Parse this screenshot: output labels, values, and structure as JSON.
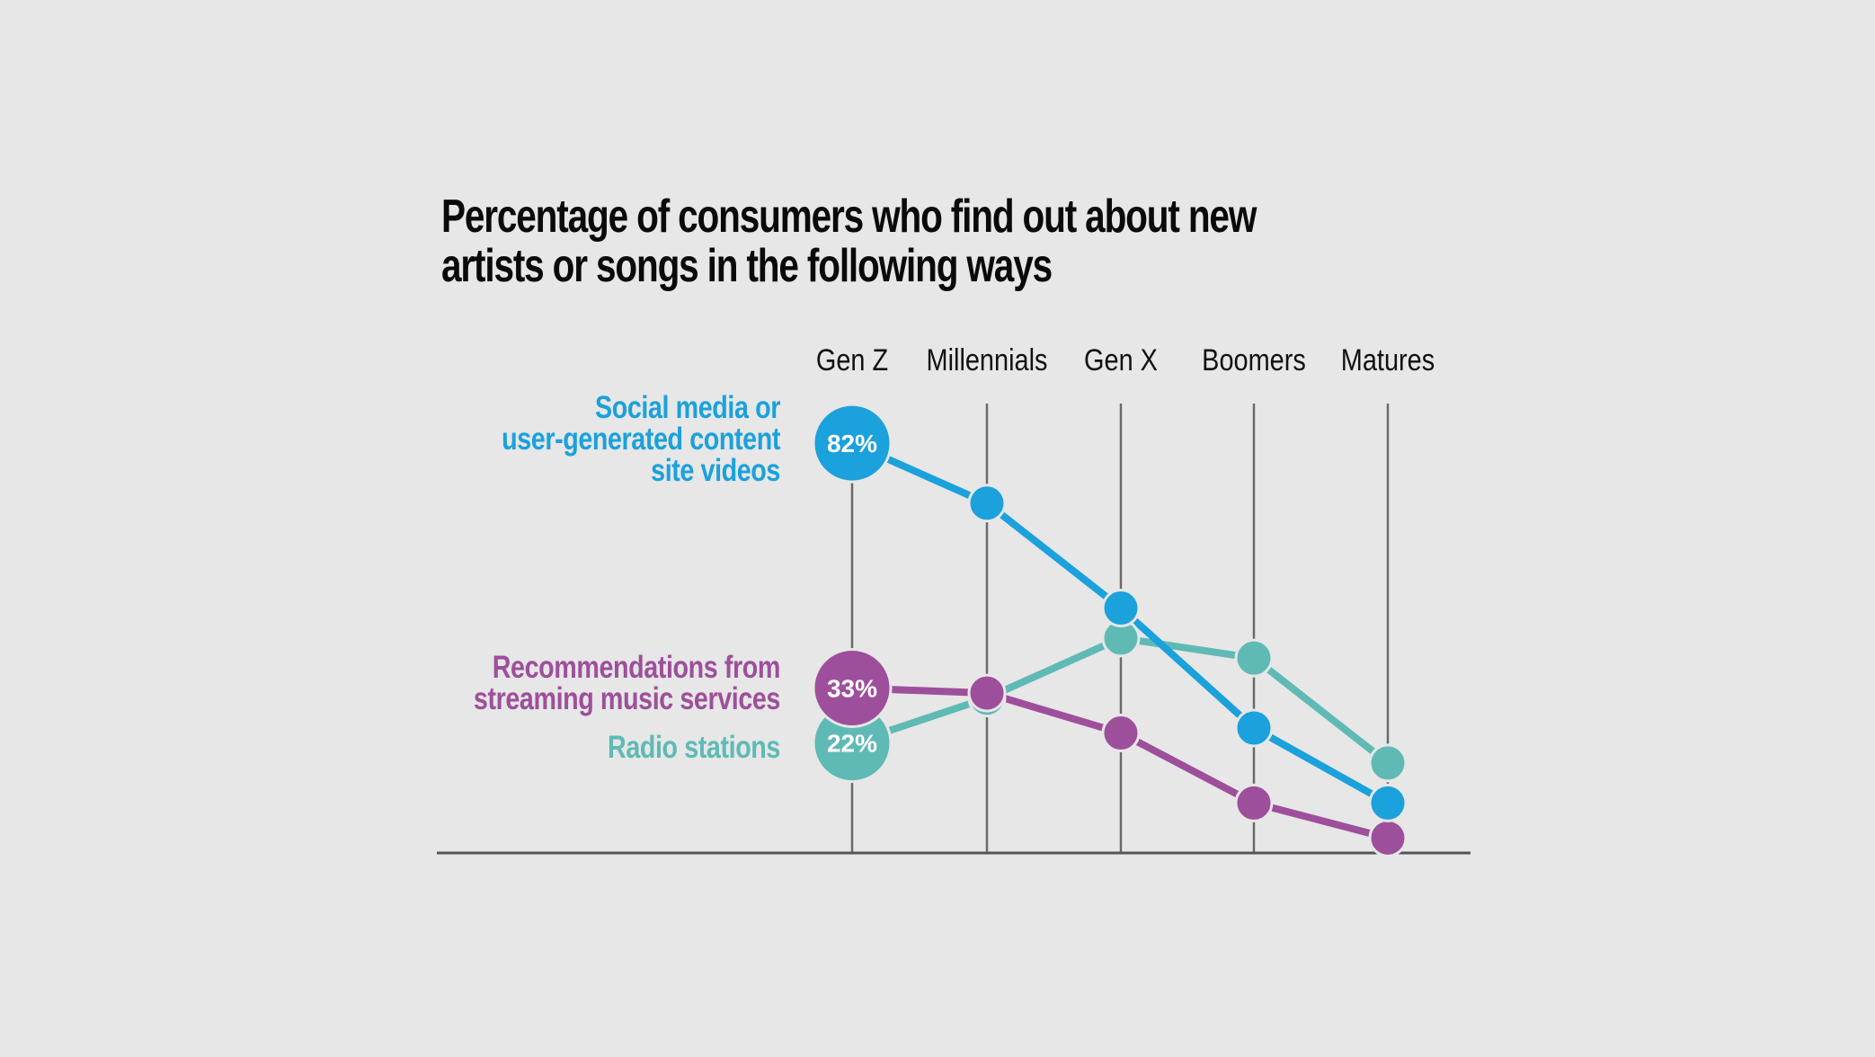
{
  "title": {
    "line1": "Percentage of consumers who find out about new",
    "line2": "artists or songs in the following ways"
  },
  "chart_data": {
    "type": "line",
    "title": "Percentage of consumers who find out about new artists or songs in the following ways",
    "categories": [
      "Gen Z",
      "Millennials",
      "Gen X",
      "Boomers",
      "Matures"
    ],
    "xlabel": "",
    "ylabel": "",
    "ylim": [
      0,
      90
    ],
    "grid": "vertical lines at each category",
    "legend": "left, inline labels next to first point",
    "series": [
      {
        "name": "Social media or user-generated content site videos",
        "label_lines": [
          "Social media or",
          "user-generated content",
          "site videos"
        ],
        "color": "#1ba1dc",
        "values": [
          82,
          70,
          49,
          25,
          10
        ],
        "first_label": "82%"
      },
      {
        "name": "Radio stations",
        "label_lines": [
          "Radio stations"
        ],
        "color": "#5fbab6",
        "values": [
          22,
          31,
          43,
          39,
          18
        ],
        "first_label": "22%"
      },
      {
        "name": "Recommendations from streaming music services",
        "label_lines": [
          "Recommendations from",
          "streaming music services"
        ],
        "color": "#9e4f9b",
        "values": [
          33,
          32,
          24,
          10,
          3
        ],
        "first_label": "33%"
      }
    ]
  },
  "colors": {
    "background": "#e6e7e6",
    "axis": "#555555",
    "grid": "#6a6a6a",
    "text": "#111111"
  }
}
